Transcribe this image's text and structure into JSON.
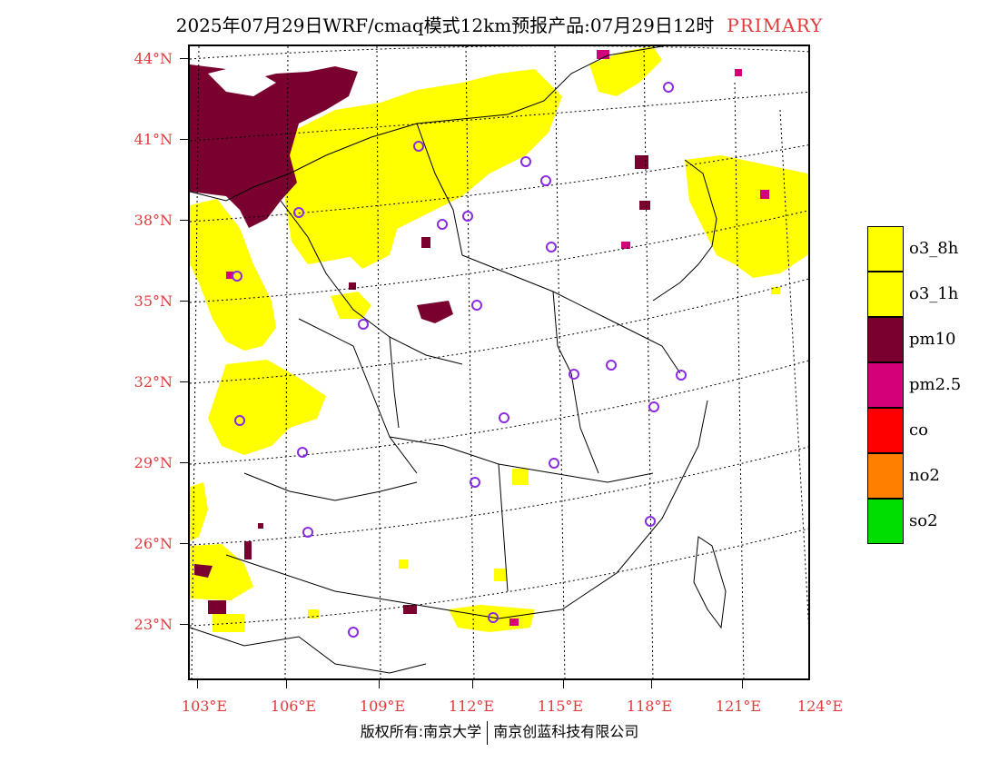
{
  "header": {
    "title": "2025年07月29日WRF/cmaq模式12km预报产品:07月29日12时",
    "tag": "PRIMARY"
  },
  "axes": {
    "lat_labels": [
      "44°N",
      "41°N",
      "38°N",
      "35°N",
      "32°N",
      "29°N",
      "26°N",
      "23°N"
    ],
    "lon_labels": [
      "103°E",
      "106°E",
      "109°E",
      "112°E",
      "115°E",
      "118°E",
      "121°E",
      "124°E"
    ]
  },
  "legend": {
    "items": [
      {
        "label": "o3_8h",
        "color": "#ffff00"
      },
      {
        "label": "o3_1h",
        "color": "#ffff00"
      },
      {
        "label": "pm10",
        "color": "#7a0030"
      },
      {
        "label": "pm2.5",
        "color": "#d4007a"
      },
      {
        "label": "co",
        "color": "#ff0000"
      },
      {
        "label": "no2",
        "color": "#ff8000"
      },
      {
        "label": "so2",
        "color": "#00dd00"
      }
    ]
  },
  "footer": {
    "credit_left": "版权所有:南京大学",
    "credit_right": "南京创蓝科技有限公司"
  },
  "map": {
    "pollutant_colors": {
      "o3": "#ffff00",
      "pm10": "#7a0030",
      "pm25": "#d4007a"
    },
    "station_marker_color": "#8a2be2"
  }
}
